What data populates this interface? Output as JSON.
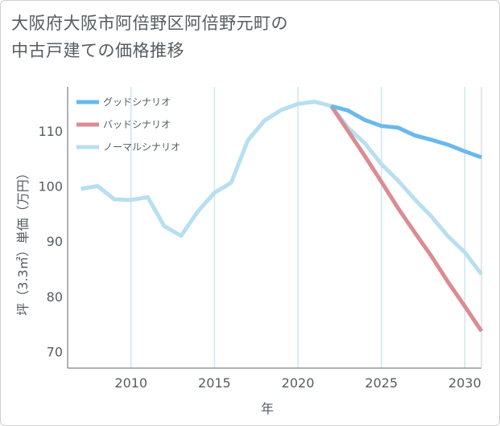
{
  "title": {
    "line1": "大阪府大阪市阿倍野区阿倍野元町の",
    "line2": "中古戸建ての価格推移"
  },
  "chart_data": {
    "type": "line",
    "xlabel": "年",
    "ylabel": "坪（3.3㎡）単価（万円）",
    "xlim": [
      2006.2,
      2031
    ],
    "ylim": [
      67,
      118
    ],
    "xticks": [
      2010,
      2015,
      2020,
      2025,
      2030
    ],
    "yticks": [
      70,
      80,
      90,
      100,
      110
    ],
    "grid": "vertical",
    "legend_position": "top-left",
    "series": [
      {
        "name": "グッドシナリオ",
        "color": "#6ab8ee",
        "x": [
          2022,
          2023,
          2024,
          2025,
          2026,
          2027,
          2028,
          2029,
          2030,
          2031
        ],
        "y": [
          114.5,
          113.7,
          112.0,
          110.9,
          110.6,
          109.2,
          108.4,
          107.5,
          106.3,
          105.2
        ]
      },
      {
        "name": "バッドシナリオ",
        "color": "#db8c92",
        "x": [
          2022,
          2023,
          2024,
          2025,
          2026,
          2027,
          2028,
          2029,
          2030,
          2031
        ],
        "y": [
          114.5,
          110.0,
          105.5,
          100.8,
          96.0,
          91.6,
          87.3,
          82.6,
          78.2,
          73.7
        ]
      },
      {
        "name": "ノーマルシナリオ",
        "color": "#b7dff0",
        "x": [
          2007,
          2008,
          2009,
          2010,
          2011,
          2012,
          2013,
          2014,
          2015,
          2016,
          2017,
          2018,
          2019,
          2020,
          2021,
          2022,
          2023,
          2024,
          2025,
          2026,
          2027,
          2028,
          2029,
          2030,
          2031
        ],
        "y": [
          99.5,
          100.0,
          97.6,
          97.5,
          98.0,
          92.7,
          91.0,
          95.4,
          98.8,
          100.6,
          108.3,
          111.9,
          113.8,
          114.9,
          115.3,
          114.5,
          110.6,
          107.8,
          104.0,
          101.0,
          97.6,
          94.5,
          90.9,
          88.0,
          84.0
        ]
      }
    ]
  }
}
